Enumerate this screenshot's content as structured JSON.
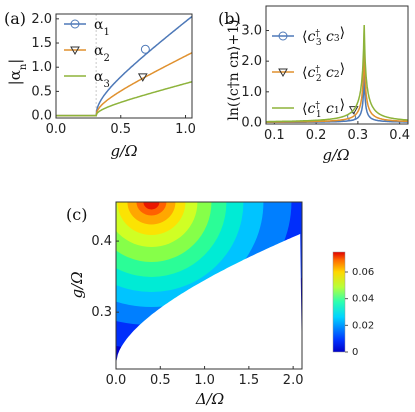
{
  "chart_data": [
    {
      "type": "line",
      "panel_label": "(a)",
      "ylabel": "|α_n|",
      "ylabel_parts": {
        "main": "|α",
        "sub": "n",
        "end": "|"
      },
      "xlabel": "g/Ω",
      "xlim": [
        0,
        1.05
      ],
      "ylim": [
        -0.05,
        2.1
      ],
      "xticks": [
        "0.0",
        "0.5",
        "1.0"
      ],
      "xtick_values": [
        0,
        0.5,
        1.0
      ],
      "yticks": [
        "0.0",
        "0.5",
        "1.0",
        "1.5",
        "2.0"
      ],
      "ytick_values": [
        0,
        0.5,
        1.0,
        1.5,
        2.0
      ],
      "threshold": 0.31,
      "series": [
        {
          "name": "α1",
          "label": "α",
          "sub": "1",
          "color": "#4e79b8",
          "marker": "circle",
          "x": [
            0,
            0.31,
            0.32,
            0.35,
            0.4,
            0.5,
            0.6,
            0.7,
            0.8,
            0.9,
            1.0,
            1.05
          ],
          "y": [
            0,
            0,
            0.25,
            0.47,
            0.67,
            0.93,
            1.15,
            1.37,
            1.57,
            1.76,
            1.95,
            2.05
          ],
          "marker_at": [
            0.69,
            1.37
          ]
        },
        {
          "name": "α2",
          "label": "α",
          "sub": "2",
          "color": "#e0912f",
          "marker": "triangle",
          "x": [
            0,
            0.31,
            0.32,
            0.35,
            0.4,
            0.5,
            0.6,
            0.7,
            0.8,
            0.9,
            1.0,
            1.05
          ],
          "y": [
            0,
            0,
            0.16,
            0.3,
            0.43,
            0.6,
            0.73,
            0.85,
            0.97,
            1.08,
            1.19,
            1.3
          ],
          "marker_at": [
            0.67,
            0.8
          ]
        },
        {
          "name": "α3",
          "label": "α",
          "sub": "3",
          "color": "#8db33a",
          "marker": "none",
          "x": [
            0,
            0.31,
            0.32,
            0.35,
            0.4,
            0.5,
            0.6,
            0.7,
            0.8,
            0.9,
            1.0,
            1.05
          ],
          "y": [
            0,
            0,
            0.1,
            0.18,
            0.25,
            0.35,
            0.43,
            0.5,
            0.56,
            0.62,
            0.67,
            0.7
          ]
        }
      ]
    },
    {
      "type": "line",
      "panel_label": "(b)",
      "ylabel": "ln(⟨c†n cn⟩+1)",
      "xlabel": "g/Ω",
      "xlim": [
        0.08,
        0.42
      ],
      "ylim": [
        -0.05,
        3.8
      ],
      "xticks": [
        "0.1",
        "0.2",
        "0.3",
        "0.4"
      ],
      "xtick_values": [
        0.1,
        0.2,
        0.3,
        0.4
      ],
      "yticks": [
        "0.0",
        "1.0",
        "2.0",
        "3.0"
      ],
      "ytick_values": [
        0,
        1.0,
        2.0,
        3.0
      ],
      "peak": 0.315,
      "series": [
        {
          "name": "⟨c†3 c3⟩",
          "label": "c3",
          "color": "#4e79b8",
          "marker": "circle",
          "scale": 0.0016,
          "marker_at": [
            0.285,
            0.19
          ]
        },
        {
          "name": "⟨c†2 c2⟩",
          "label": "c2",
          "color": "#e0912f",
          "marker": "triangle",
          "scale": 0.004,
          "marker_at": [
            0.29,
            0.42
          ]
        },
        {
          "name": "⟨c†1 c1⟩",
          "label": "c1",
          "color": "#8db33a",
          "marker": "none",
          "scale": 0.009
        }
      ]
    },
    {
      "type": "heatmap",
      "panel_label": "(c)",
      "xlabel": "Δ/Ω",
      "ylabel": "g/Ω",
      "xlim": [
        0,
        2.1
      ],
      "ylim": [
        0.22,
        0.455
      ],
      "xticks": [
        "0.0",
        "0.5",
        "1.0",
        "1.5",
        "2.0"
      ],
      "xtick_values": [
        0,
        0.5,
        1.0,
        1.5,
        2.0
      ],
      "yticks": [
        "0.3",
        "0.4"
      ],
      "ytick_values": [
        0.3,
        0.4
      ],
      "colorbar_ticks": [
        "0",
        "0.02",
        "0.04",
        "0.06"
      ],
      "colorbar_values": [
        0,
        0.02,
        0.04,
        0.06
      ],
      "colorbar_range": [
        0,
        0.075
      ]
    }
  ]
}
